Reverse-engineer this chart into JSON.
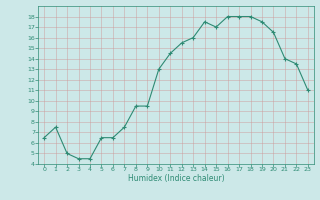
{
  "x": [
    0,
    1,
    2,
    3,
    4,
    5,
    6,
    7,
    8,
    9,
    10,
    11,
    12,
    13,
    14,
    15,
    16,
    17,
    18,
    19,
    20,
    21,
    22,
    23
  ],
  "y": [
    6.5,
    7.5,
    5.0,
    4.5,
    4.5,
    6.5,
    6.5,
    7.5,
    9.5,
    9.5,
    13.0,
    14.5,
    15.5,
    16.0,
    17.5,
    17.0,
    18.0,
    18.0,
    18.0,
    17.5,
    16.5,
    14.0,
    13.5,
    11.0
  ],
  "xlabel": "Humidex (Indice chaleur)",
  "xlim": [
    -0.5,
    23.5
  ],
  "ylim": [
    4,
    19
  ],
  "yticks": [
    4,
    5,
    6,
    7,
    8,
    9,
    10,
    11,
    12,
    13,
    14,
    15,
    16,
    17,
    18
  ],
  "xticks": [
    0,
    1,
    2,
    3,
    4,
    5,
    6,
    7,
    8,
    9,
    10,
    11,
    12,
    13,
    14,
    15,
    16,
    17,
    18,
    19,
    20,
    21,
    22,
    23
  ],
  "line_color": "#2e8b74",
  "bg_color": "#cce8e8",
  "grid_color_major": "#cc9999",
  "grid_color_minor": "#cc9999",
  "tick_color": "#2e8b74",
  "label_color": "#2e8b74"
}
